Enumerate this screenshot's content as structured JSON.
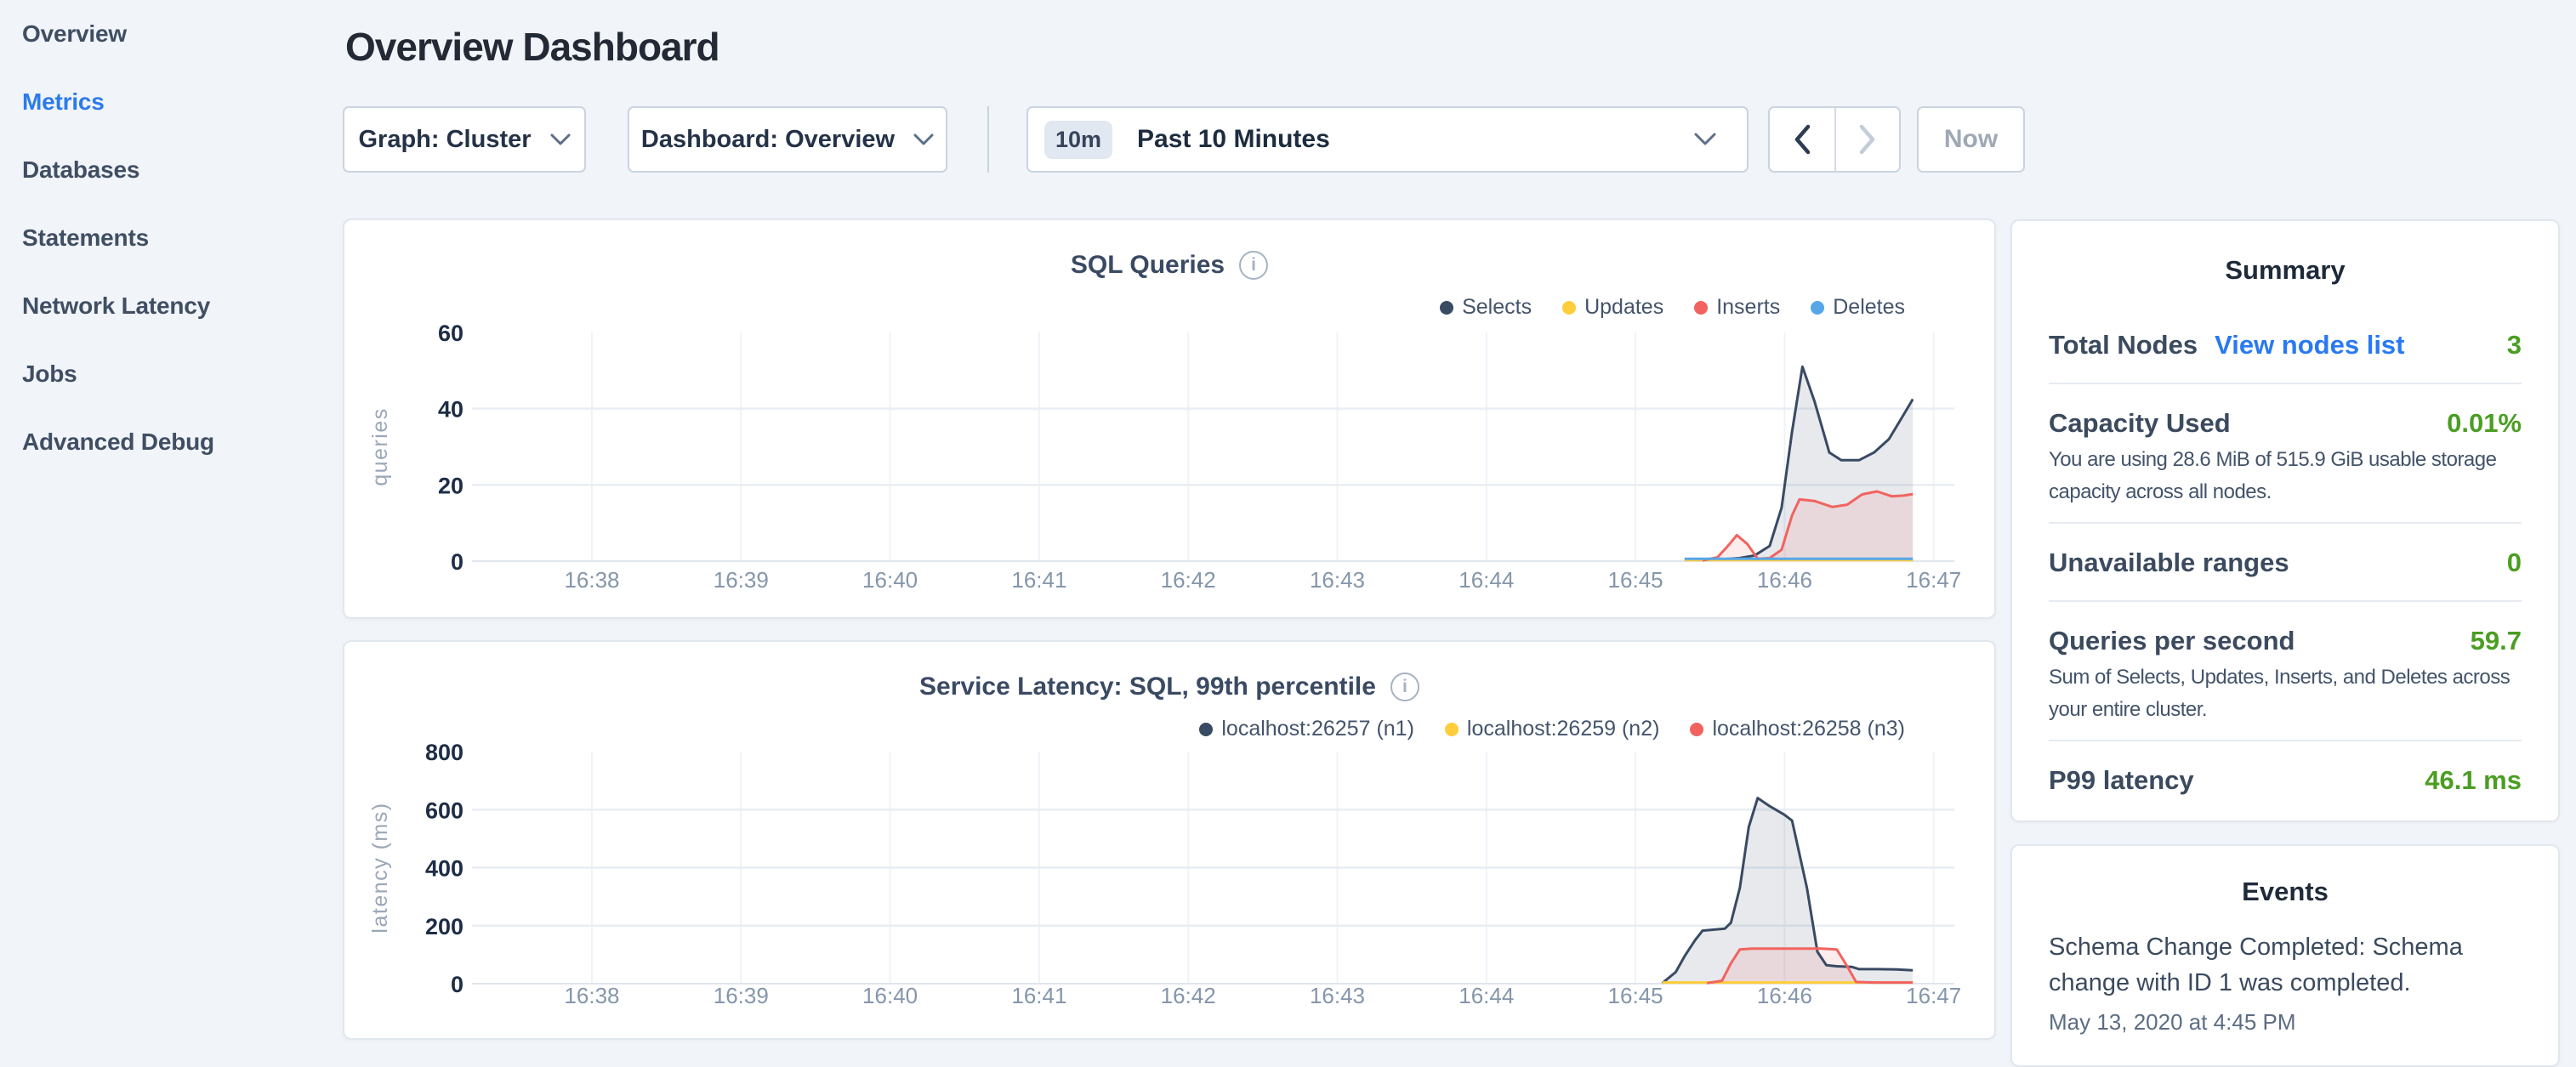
{
  "sidebar": {
    "items": [
      {
        "label": "Overview",
        "active": false
      },
      {
        "label": "Metrics",
        "active": true
      },
      {
        "label": "Databases",
        "active": false
      },
      {
        "label": "Statements",
        "active": false
      },
      {
        "label": "Network Latency",
        "active": false
      },
      {
        "label": "Jobs",
        "active": false
      },
      {
        "label": "Advanced Debug",
        "active": false
      }
    ]
  },
  "header": {
    "title": "Overview Dashboard"
  },
  "controls": {
    "graph_selector": {
      "label": "Graph: Cluster"
    },
    "dashboard_selector": {
      "label": "Dashboard: Overview"
    },
    "time_selector": {
      "badge": "10m",
      "label": "Past 10 Minutes"
    },
    "now_button": "Now"
  },
  "colors": {
    "accent_blue": "#2b7ce9",
    "link_blue": "#2979f2",
    "value_green": "#4a9e22",
    "series_navy": "#394a63",
    "series_yellow": "#ffcd3a",
    "series_red": "#f2635f",
    "series_blue": "#56a6e8"
  },
  "chart_data": [
    {
      "type": "line",
      "title": "SQL Queries",
      "ylabel": "queries",
      "ylim": [
        0,
        60
      ],
      "yticks": [
        0,
        20,
        40,
        60
      ],
      "xticks": [
        "16:38",
        "16:39",
        "16:40",
        "16:41",
        "16:42",
        "16:43",
        "16:44",
        "16:45",
        "16:46",
        "16:47"
      ],
      "x_unit": "minutes after 16:38",
      "grid": true,
      "legend_position": "top-right",
      "series": [
        {
          "name": "Selects",
          "color": "#394a63",
          "points": [
            [
              7.33,
              0.4
            ],
            [
              7.55,
              0.4
            ],
            [
              7.7,
              0.8
            ],
            [
              7.8,
              1.5
            ],
            [
              7.9,
              4
            ],
            [
              7.98,
              14
            ],
            [
              8.05,
              34
            ],
            [
              8.12,
              51
            ],
            [
              8.2,
              42
            ],
            [
              8.3,
              28.5
            ],
            [
              8.38,
              26.5
            ],
            [
              8.5,
              26.5
            ],
            [
              8.6,
              28.5
            ],
            [
              8.7,
              32
            ],
            [
              8.8,
              38.5
            ],
            [
              8.86,
              42.5
            ]
          ]
        },
        {
          "name": "Updates",
          "color": "#ffcd3a",
          "points": [
            [
              7.33,
              0.3
            ],
            [
              8.86,
              0.3
            ]
          ]
        },
        {
          "name": "Inserts",
          "color": "#f2635f",
          "points": [
            [
              7.45,
              0.2
            ],
            [
              7.55,
              1
            ],
            [
              7.62,
              4
            ],
            [
              7.68,
              6.8
            ],
            [
              7.75,
              4.5
            ],
            [
              7.82,
              0.6
            ],
            [
              7.9,
              0.8
            ],
            [
              7.98,
              3
            ],
            [
              8.05,
              12
            ],
            [
              8.1,
              16.2
            ],
            [
              8.2,
              15.8
            ],
            [
              8.32,
              14.2
            ],
            [
              8.42,
              14.8
            ],
            [
              8.52,
              17.5
            ],
            [
              8.62,
              18.3
            ],
            [
              8.72,
              17
            ],
            [
              8.8,
              17.2
            ],
            [
              8.86,
              17.6
            ]
          ]
        },
        {
          "name": "Deletes",
          "color": "#56a6e8",
          "points": [
            [
              7.33,
              0.6
            ],
            [
              8.86,
              0.6
            ]
          ]
        }
      ]
    },
    {
      "type": "line",
      "title": "Service Latency: SQL, 99th percentile",
      "ylabel": "latency (ms)",
      "ylim": [
        0,
        800
      ],
      "yticks": [
        0,
        200,
        400,
        600,
        800
      ],
      "xticks": [
        "16:38",
        "16:39",
        "16:40",
        "16:41",
        "16:42",
        "16:43",
        "16:44",
        "16:45",
        "16:46",
        "16:47"
      ],
      "x_unit": "minutes after 16:38",
      "grid": true,
      "legend_position": "top-right",
      "series": [
        {
          "name": "localhost:26257 (n1)",
          "color": "#394a63",
          "points": [
            [
              7.18,
              2
            ],
            [
              7.27,
              40
            ],
            [
              7.33,
              95
            ],
            [
              7.4,
              150
            ],
            [
              7.45,
              183
            ],
            [
              7.52,
              186
            ],
            [
              7.6,
              190
            ],
            [
              7.64,
              210
            ],
            [
              7.7,
              330
            ],
            [
              7.76,
              540
            ],
            [
              7.82,
              640
            ],
            [
              7.9,
              612
            ],
            [
              8.0,
              582
            ],
            [
              8.05,
              562
            ],
            [
              8.15,
              330
            ],
            [
              8.22,
              110
            ],
            [
              8.28,
              64
            ],
            [
              8.35,
              60
            ],
            [
              8.45,
              58
            ],
            [
              8.5,
              50
            ],
            [
              8.62,
              50
            ],
            [
              8.75,
              49
            ],
            [
              8.86,
              46
            ]
          ]
        },
        {
          "name": "localhost:26259 (n2)",
          "color": "#ffcd3a",
          "points": [
            [
              7.18,
              4
            ],
            [
              8.86,
              4
            ]
          ]
        },
        {
          "name": "localhost:26258 (n3)",
          "color": "#f2635f",
          "points": [
            [
              7.48,
              2
            ],
            [
              7.58,
              10
            ],
            [
              7.64,
              70
            ],
            [
              7.7,
              118
            ],
            [
              7.78,
              121
            ],
            [
              8.25,
              121
            ],
            [
              8.35,
              118
            ],
            [
              8.42,
              60
            ],
            [
              8.48,
              6
            ],
            [
              8.6,
              4
            ],
            [
              8.86,
              4
            ]
          ]
        }
      ]
    }
  ],
  "summary": {
    "title": "Summary",
    "rows": [
      {
        "label": "Total Nodes",
        "link": "View nodes list",
        "value": "3"
      },
      {
        "label": "Capacity Used",
        "value": "0.01%",
        "description": "You are using 28.6 MiB of 515.9 GiB usable storage capacity across all nodes."
      },
      {
        "label": "Unavailable ranges",
        "value": "0"
      },
      {
        "label": "Queries per second",
        "value": "59.7",
        "description": "Sum of Selects, Updates, Inserts, and Deletes across your entire cluster."
      },
      {
        "label": "P99 latency",
        "value": "46.1 ms"
      }
    ]
  },
  "events": {
    "title": "Events",
    "items": [
      {
        "text": "Schema Change Completed: Schema change with ID 1 was completed.",
        "timestamp": "May 13, 2020 at 4:45 PM"
      }
    ]
  }
}
